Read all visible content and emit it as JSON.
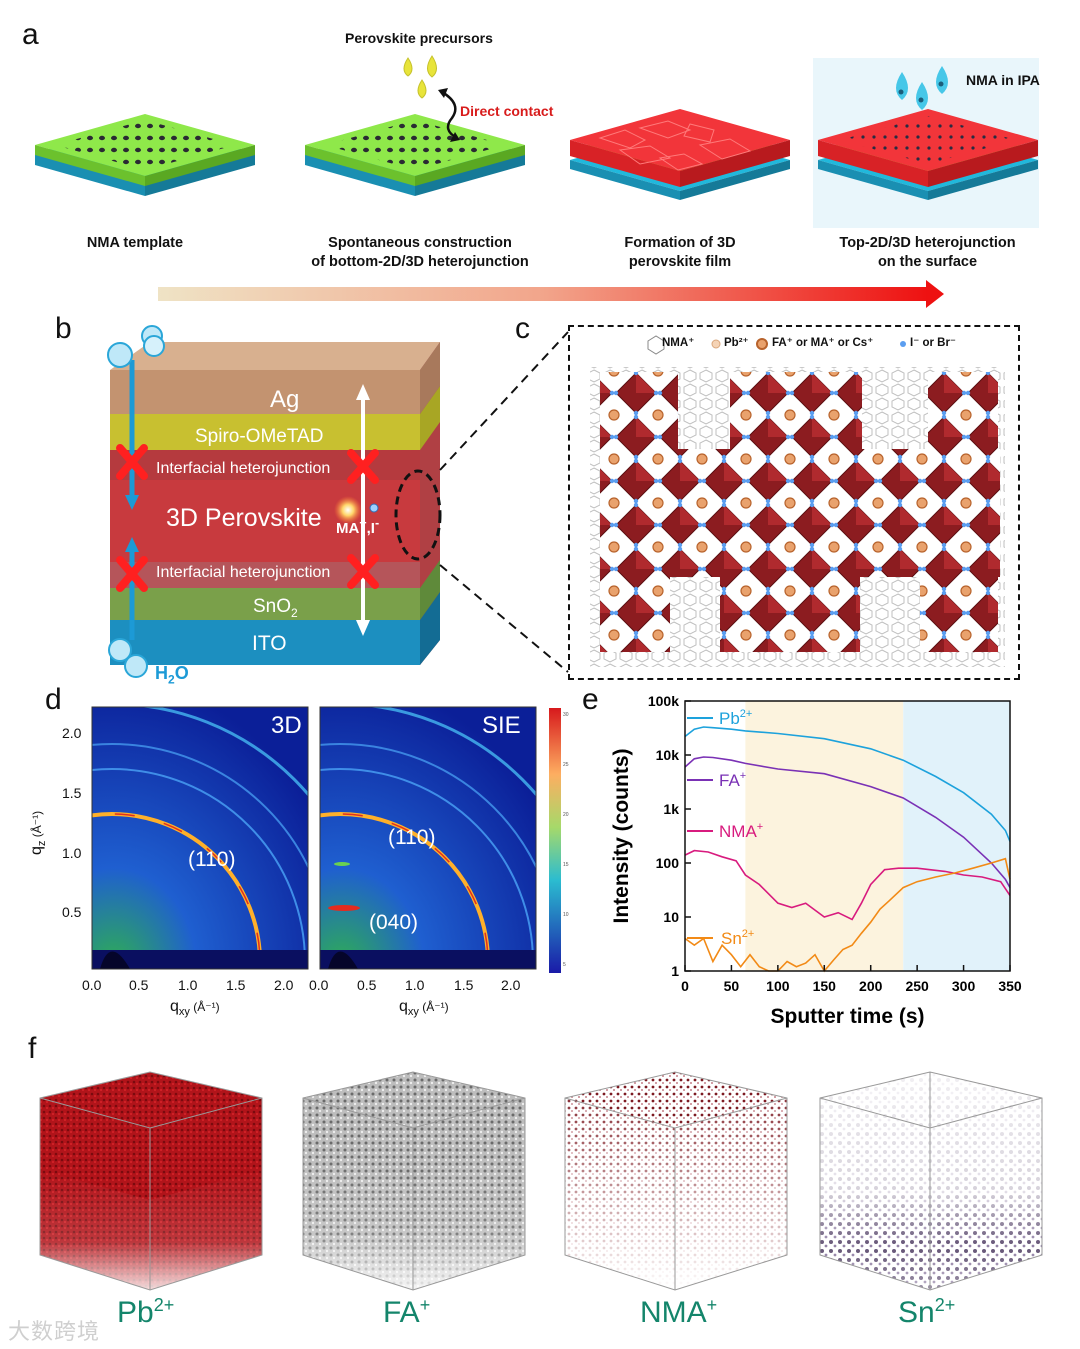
{
  "panel_a": {
    "letter": "a",
    "precursor_title": "Perovskite precursors",
    "direct_contact": "Direct contact",
    "nma_ipa": "NMA in IPA",
    "captions": [
      "NMA template",
      "Spontaneous construction\nof bottom-2D/3D heterojunction",
      "Formation of 3D\nperovskite film",
      "Top-2D/3D heterojunction\non the surface"
    ]
  },
  "panel_b": {
    "letter": "b",
    "layers": [
      "Ag",
      "Spiro-OMeTAD",
      "Interfacial heterojunction",
      "3D Perovskite",
      "Interfacial heterojunction",
      "SnO",
      "ITO"
    ],
    "sno2_sub": "2",
    "ion_label": "MA",
    "ion_label_rest": ",I",
    "h2o_label": "H",
    "h2o_sub": "2",
    "h2o_rest": "O"
  },
  "panel_c": {
    "letter": "c",
    "legend": [
      "NMA⁺",
      "Pb²⁺",
      "FA⁺ or MA⁺ or Cs⁺",
      "I⁻ or Br⁻"
    ]
  },
  "panel_d": {
    "letter": "d",
    "ylabel": "q",
    "ylabel_sub": "z",
    "ylabel_unit": " (Å⁻¹)",
    "xlabel": "q",
    "xlabel_sub": "xy",
    "xlabel_unit": " (Å⁻¹)",
    "left_title": "3D",
    "right_title": "SIE",
    "left_peak": "(110)",
    "right_peak_1": "(110)",
    "right_peak_2": "(040)",
    "yticks": [
      "2.0",
      "1.5",
      "1.0",
      "0.5"
    ],
    "xticks": [
      "0.0",
      "0.5",
      "1.0",
      "1.5",
      "2.0"
    ],
    "colorbar_ticks": [
      "30",
      "25",
      "20",
      "15",
      "10",
      "5"
    ]
  },
  "panel_e": {
    "letter": "e"
  },
  "panel_f": {
    "letter": "f",
    "labels": [
      {
        "base": "Pb",
        "sup": "2+"
      },
      {
        "base": "FA",
        "sup": "+"
      },
      {
        "base": "NMA",
        "sup": "+"
      },
      {
        "base": "Sn",
        "sup": "2+"
      }
    ]
  },
  "watermark": "大数跨境",
  "chart_data": {
    "type": "line",
    "title": "",
    "xlabel": "Sputter time (s)",
    "ylabel": "Intensity (counts)",
    "xlim": [
      0,
      350
    ],
    "ylim": [
      1,
      100000
    ],
    "yscale": "log",
    "xticks": [
      "0",
      "50",
      "100",
      "150",
      "200",
      "250",
      "300",
      "350"
    ],
    "yticks": [
      "1",
      "10",
      "100",
      "1k",
      "10k",
      "100k"
    ],
    "shaded_regions": [
      {
        "from": 65,
        "to": 235,
        "color": "#fcf3de"
      },
      {
        "from": 235,
        "to": 350,
        "color": "#e1f2fa"
      }
    ],
    "series": [
      {
        "name": "Pb",
        "sup": "2+",
        "color": "#1da2dc",
        "x": [
          0,
          10,
          20,
          30,
          50,
          65,
          100,
          150,
          200,
          235,
          270,
          300,
          330,
          345,
          350
        ],
        "y": [
          22000,
          30000,
          33000,
          32000,
          30000,
          28000,
          25000,
          20000,
          13000,
          8000,
          4000,
          2000,
          800,
          400,
          250
        ]
      },
      {
        "name": "FA",
        "sup": "+",
        "color": "#7a31b5",
        "x": [
          0,
          10,
          20,
          30,
          50,
          65,
          100,
          150,
          200,
          235,
          270,
          300,
          330,
          345,
          350
        ],
        "y": [
          6000,
          8500,
          9200,
          9000,
          8000,
          7000,
          5500,
          4500,
          2600,
          1600,
          700,
          300,
          100,
          50,
          35
        ]
      },
      {
        "name": "NMA",
        "sup": "+",
        "color": "#d81b7e",
        "x": [
          0,
          10,
          25,
          40,
          55,
          65,
          80,
          100,
          115,
          130,
          150,
          165,
          180,
          190,
          200,
          215,
          230,
          250,
          280,
          300,
          320,
          340,
          350
        ],
        "y": [
          140,
          170,
          160,
          130,
          110,
          60,
          40,
          18,
          15,
          18,
          10,
          12,
          9,
          18,
          40,
          75,
          80,
          80,
          70,
          60,
          55,
          45,
          25
        ]
      },
      {
        "name": "Sn",
        "sup": "2+",
        "color": "#f28a16",
        "x": [
          0,
          10,
          20,
          30,
          40,
          50,
          60,
          70,
          80,
          90,
          100,
          110,
          120,
          130,
          140,
          150,
          160,
          170,
          180,
          190,
          200,
          210,
          220,
          235,
          250,
          270,
          290,
          310,
          330,
          345,
          350
        ],
        "y": [
          4,
          3,
          4,
          1.5,
          3,
          2,
          1.2,
          2,
          1.2,
          1,
          1,
          1.5,
          1.2,
          1.4,
          2,
          1,
          1.6,
          2.5,
          3,
          5,
          8,
          14,
          20,
          35,
          45,
          55,
          65,
          80,
          100,
          120,
          50
        ]
      }
    ]
  }
}
